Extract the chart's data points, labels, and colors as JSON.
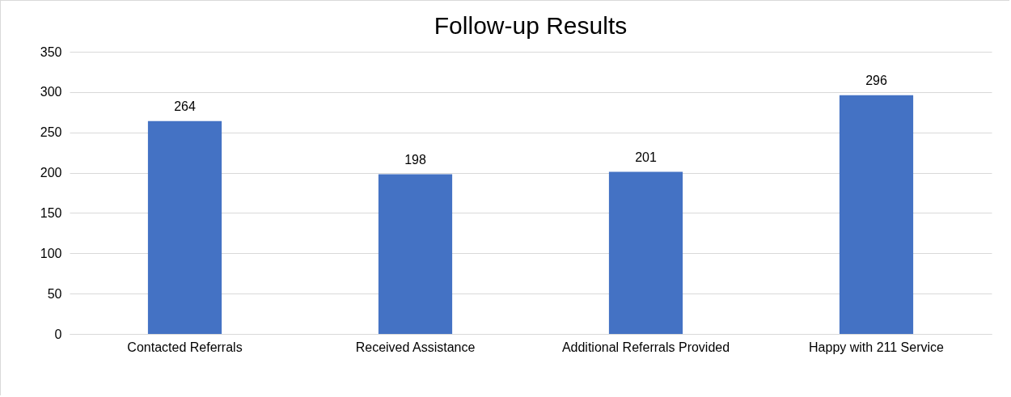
{
  "chart_data": {
    "type": "bar",
    "title": "Follow-up Results",
    "categories": [
      "Contacted Referrals",
      "Received Assistance",
      "Additional Referrals Provided",
      "Happy with 211 Service"
    ],
    "values": [
      264,
      198,
      201,
      296
    ],
    "color": "#4472c4",
    "ylim": [
      0,
      350
    ],
    "yticks": [
      0,
      50,
      100,
      150,
      200,
      250,
      300,
      350
    ],
    "grid": "y",
    "data_labels": true
  }
}
